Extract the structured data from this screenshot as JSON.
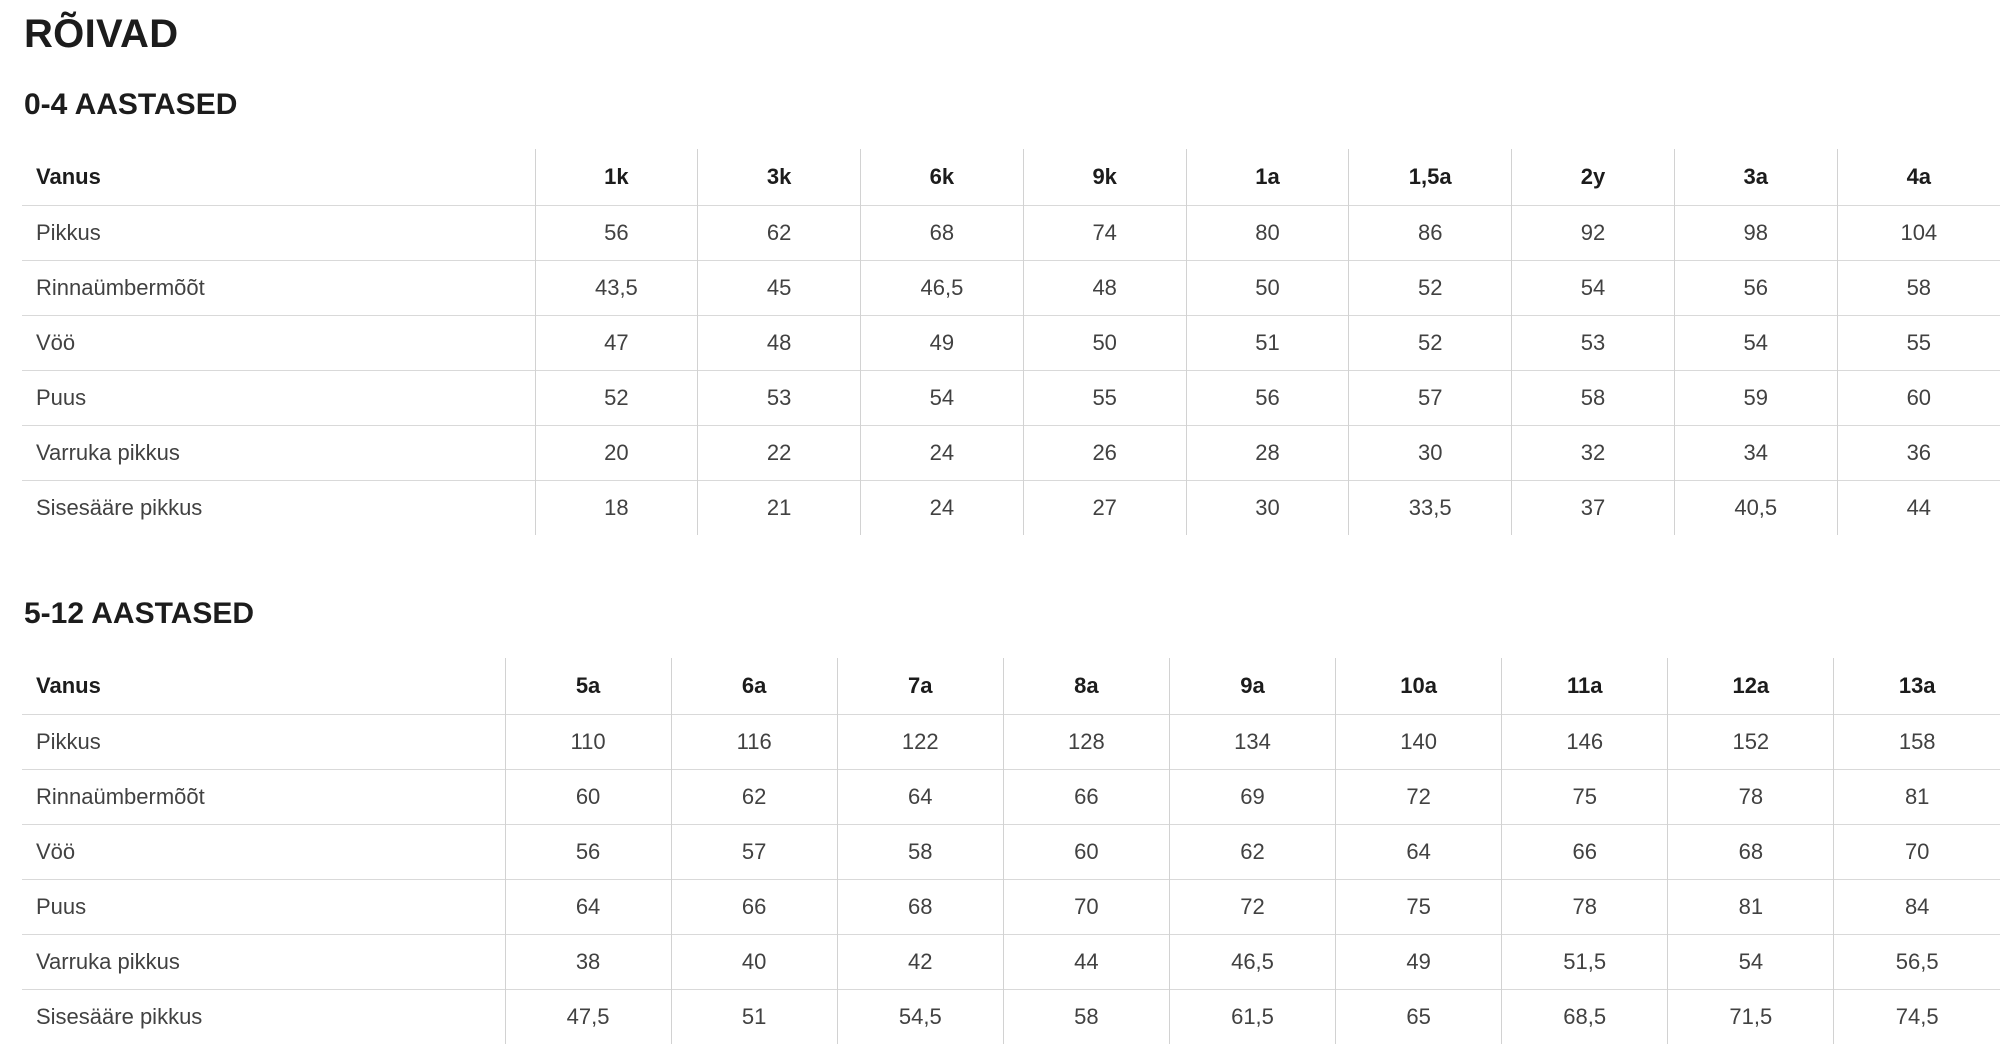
{
  "page": {
    "title": "RÕIVAD"
  },
  "colors": {
    "background": "#ffffff",
    "heading_text": "#1c1c1c",
    "body_text": "#414141",
    "grid_line": "#d9d9d9"
  },
  "tables": [
    {
      "section_heading": "0-4 AASTASED",
      "header": [
        "Vanus",
        "1k",
        "3k",
        "6k",
        "9k",
        "1a",
        "1,5a",
        "2y",
        "3a",
        "4a"
      ],
      "rows": [
        {
          "label": "Pikkus",
          "values": [
            "56",
            "62",
            "68",
            "74",
            "80",
            "86",
            "92",
            "98",
            "104"
          ]
        },
        {
          "label": "Rinnaümbermõõt",
          "values": [
            "43,5",
            "45",
            "46,5",
            "48",
            "50",
            "52",
            "54",
            "56",
            "58"
          ]
        },
        {
          "label": "Vöö",
          "values": [
            "47",
            "48",
            "49",
            "50",
            "51",
            "52",
            "53",
            "54",
            "55"
          ]
        },
        {
          "label": "Puus",
          "values": [
            "52",
            "53",
            "54",
            "55",
            "56",
            "57",
            "58",
            "59",
            "60"
          ]
        },
        {
          "label": "Varruka pikkus",
          "values": [
            "20",
            "22",
            "24",
            "26",
            "28",
            "30",
            "32",
            "34",
            "36"
          ]
        },
        {
          "label": "Sisesääre pikkus",
          "values": [
            "18",
            "21",
            "24",
            "27",
            "30",
            "33,5",
            "37",
            "40,5",
            "44"
          ]
        }
      ]
    },
    {
      "section_heading": "5-12 AASTASED",
      "header": [
        "Vanus",
        "5a",
        "6a",
        "7a",
        "8a",
        "9a",
        "10a",
        "11a",
        "12a",
        "13a"
      ],
      "rows": [
        {
          "label": "Pikkus",
          "values": [
            "110",
            "116",
            "122",
            "128",
            "134",
            "140",
            "146",
            "152",
            "158"
          ]
        },
        {
          "label": "Rinnaümbermõõt",
          "values": [
            "60",
            "62",
            "64",
            "66",
            "69",
            "72",
            "75",
            "78",
            "81"
          ]
        },
        {
          "label": "Vöö",
          "values": [
            "56",
            "57",
            "58",
            "60",
            "62",
            "64",
            "66",
            "68",
            "70"
          ]
        },
        {
          "label": "Puus",
          "values": [
            "64",
            "66",
            "68",
            "70",
            "72",
            "75",
            "78",
            "81",
            "84"
          ]
        },
        {
          "label": "Varruka pikkus",
          "values": [
            "38",
            "40",
            "42",
            "44",
            "46,5",
            "49",
            "51,5",
            "54",
            "56,5"
          ]
        },
        {
          "label": "Sisesääre pikkus",
          "values": [
            "47,5",
            "51",
            "54,5",
            "58",
            "61,5",
            "65",
            "68,5",
            "71,5",
            "74,5"
          ]
        }
      ]
    }
  ]
}
